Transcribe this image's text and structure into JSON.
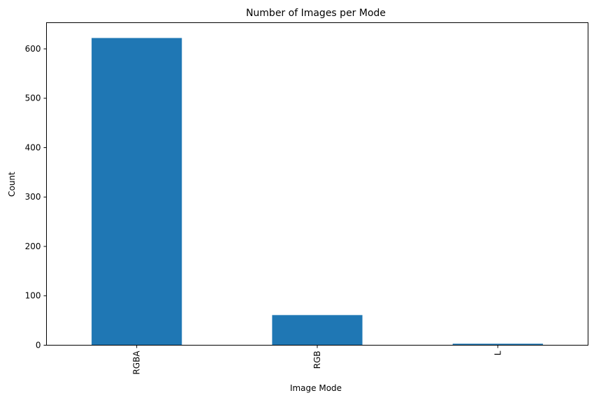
{
  "chart_data": {
    "type": "bar",
    "title": "Number of Images per Mode",
    "xlabel": "Image Mode",
    "ylabel": "Count",
    "categories": [
      "RGBA",
      "RGB",
      "L"
    ],
    "values": [
      622,
      61,
      3
    ],
    "ylim": [
      0,
      653
    ],
    "yticks": [
      0,
      100,
      200,
      300,
      400,
      500,
      600
    ],
    "bar_color": "#1f77b4",
    "grid": false,
    "legend": "none",
    "xtick_rotation": "vertical"
  }
}
